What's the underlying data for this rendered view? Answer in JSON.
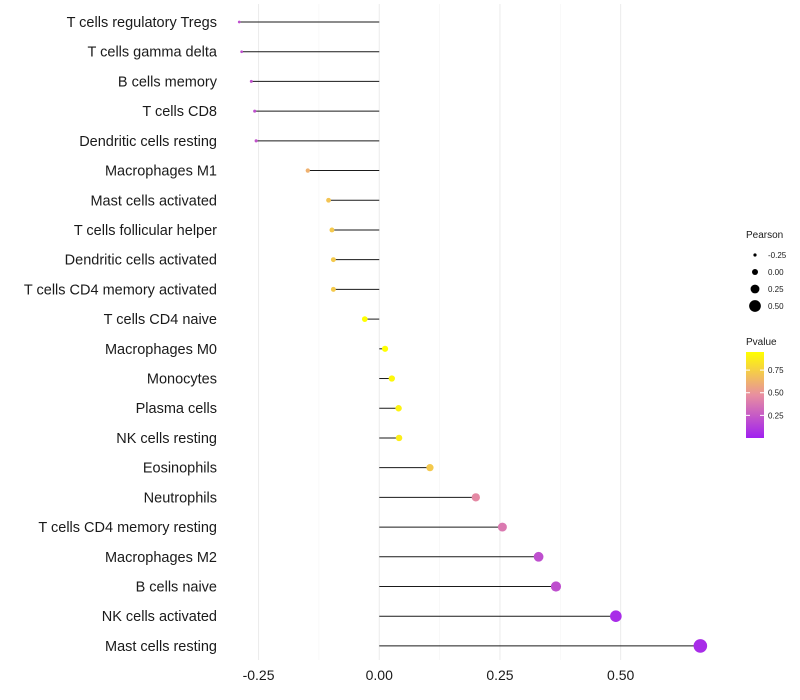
{
  "chart_data": {
    "type": "lollipop",
    "x_ticks": [
      -0.25,
      0.0,
      0.25,
      0.5
    ],
    "x_tick_labels": [
      "-0.25",
      "0.00",
      "0.25",
      "0.50"
    ],
    "xlim": [
      -0.305,
      0.685
    ],
    "categories": [
      "T cells regulatory  Tregs",
      "T cells gamma delta",
      "B cells memory",
      "T cells CD8",
      "Dendritic cells resting",
      "Macrophages M1",
      "Mast cells activated",
      "T cells follicular helper",
      "Dendritic cells activated",
      "T cells CD4 memory activated",
      "T cells CD4 naive",
      "Macrophages M0",
      "Monocytes",
      "Plasma cells",
      "NK cells resting",
      "Eosinophils",
      "Neutrophils",
      "T cells CD4 memory resting",
      "Macrophages M2",
      "B cells naive",
      "NK cells activated",
      "Mast cells resting"
    ],
    "pearson": [
      -0.29,
      -0.285,
      -0.265,
      -0.258,
      -0.255,
      -0.148,
      -0.105,
      -0.098,
      -0.095,
      -0.095,
      -0.03,
      0.012,
      0.026,
      0.04,
      0.041,
      0.105,
      0.2,
      0.255,
      0.33,
      0.366,
      0.49,
      0.665
    ],
    "pvalue": [
      0.2,
      0.2,
      0.21,
      0.2,
      0.22,
      0.62,
      0.7,
      0.72,
      0.72,
      0.72,
      0.95,
      0.95,
      0.92,
      0.9,
      0.88,
      0.72,
      0.45,
      0.38,
      0.2,
      0.2,
      0.05,
      0.05
    ],
    "size_legend": {
      "title": "Pearson",
      "values": [
        -0.25,
        0.0,
        0.25,
        0.5
      ],
      "labels": [
        "-0.25",
        "0.00",
        "0.25",
        "0.50"
      ]
    },
    "color_legend": {
      "title": "Pvalue",
      "range": [
        0.0,
        0.95
      ],
      "ticks": [
        0.75,
        0.5,
        0.25
      ],
      "labels": [
        "0.75",
        "0.50",
        "0.25"
      ],
      "low_color": "#a020f0",
      "mid_color": "#e88fa0",
      "high_color": "#ffff00"
    },
    "grid": true,
    "title": "",
    "xlabel": "",
    "ylabel": ""
  }
}
